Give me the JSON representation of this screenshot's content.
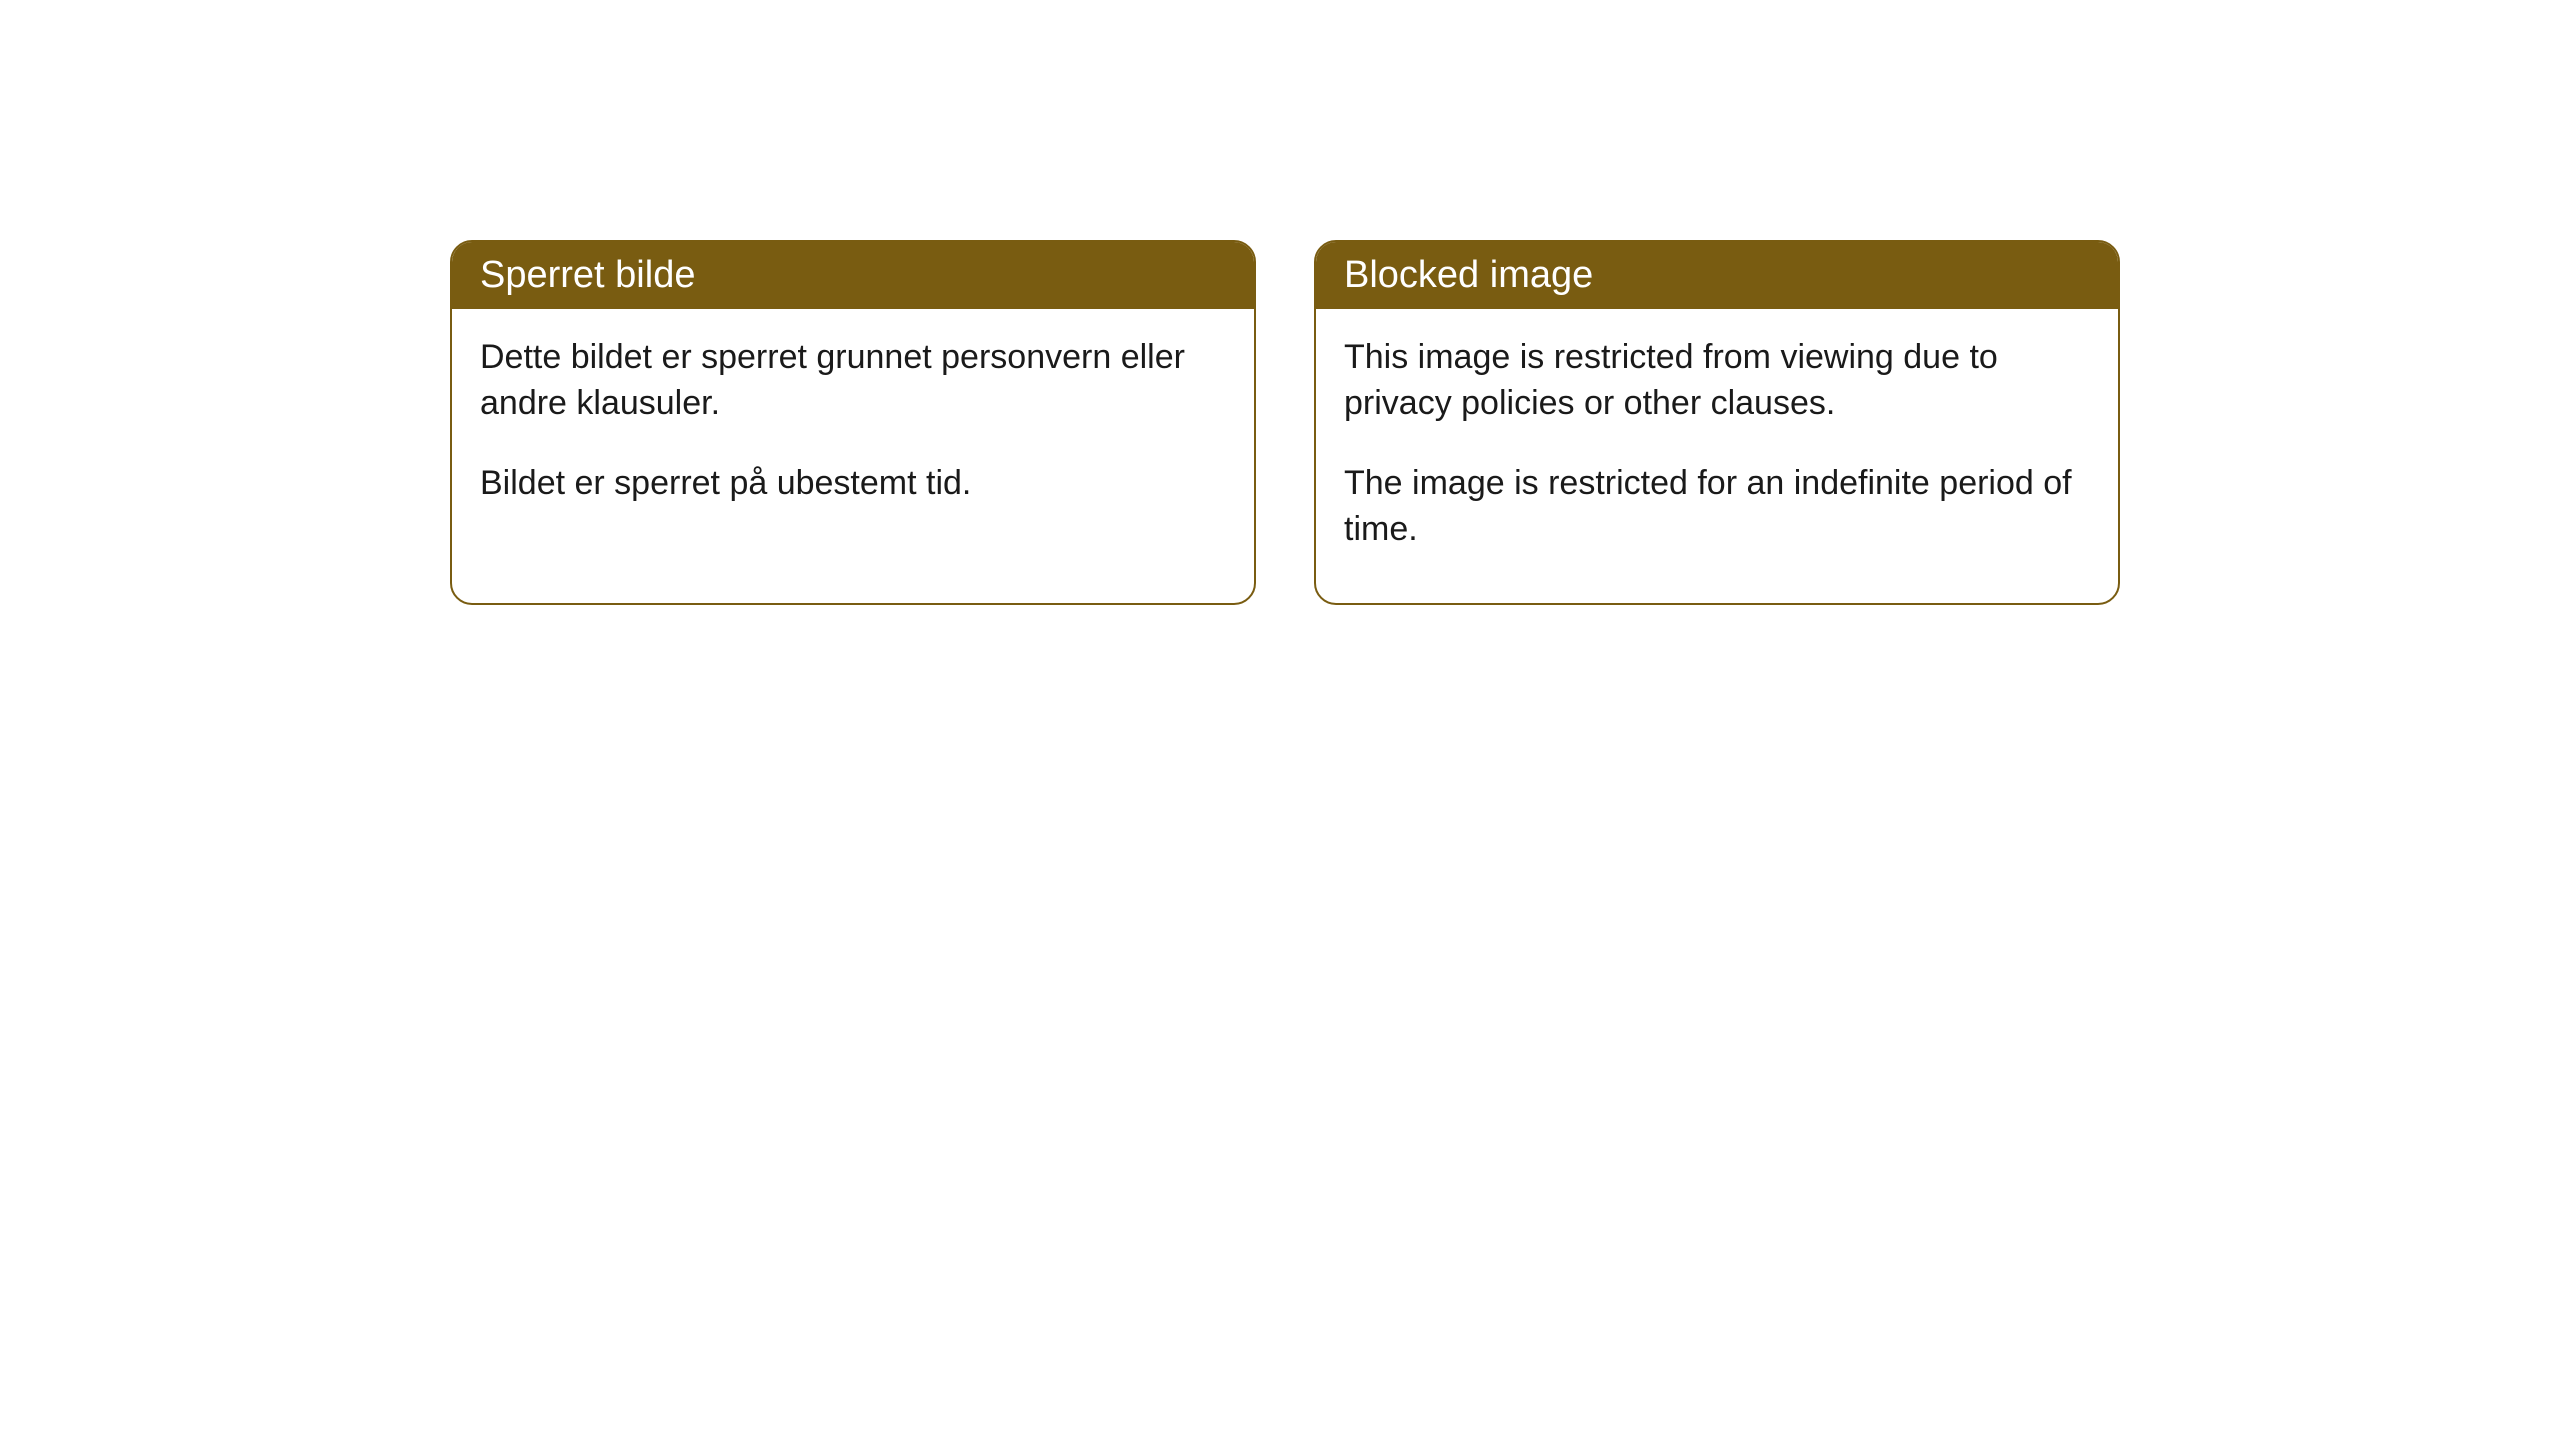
{
  "cards": [
    {
      "title": "Sperret bilde",
      "paragraph1": "Dette bildet er sperret grunnet personvern eller andre klausuler.",
      "paragraph2": "Bildet er sperret på ubestemt tid."
    },
    {
      "title": "Blocked image",
      "paragraph1": "This image is restricted from viewing due to privacy policies or other clauses.",
      "paragraph2": "The image is restricted for an indefinite period of time."
    }
  ],
  "style": {
    "header_bg_color": "#795c11",
    "header_text_color": "#ffffff",
    "border_color": "#795c11",
    "body_text_color": "#1a1a1a",
    "background_color": "#ffffff",
    "border_radius": 22,
    "header_fontsize": 38,
    "body_fontsize": 34
  }
}
